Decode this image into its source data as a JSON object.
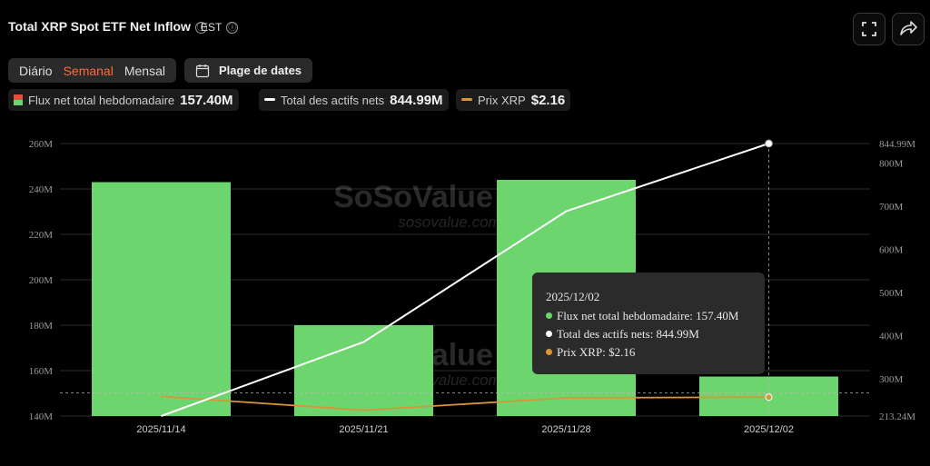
{
  "header": {
    "title": "Total XRP Spot ETF Net Inflow",
    "timezone": "EST",
    "info_icon": "ⓘ"
  },
  "periods": [
    {
      "label": "Diário",
      "active": false
    },
    {
      "label": "Semanal",
      "active": true
    },
    {
      "label": "Mensal",
      "active": false
    }
  ],
  "date_range_label": "Plage de dates",
  "legend": [
    {
      "label": "Flux net total hebdomadaire",
      "value": "157.40M"
    },
    {
      "label": "Total des actifs nets",
      "value": "844.99M"
    },
    {
      "label": "Prix XRP",
      "value": "$2.16"
    }
  ],
  "watermark": {
    "brand": "SoSoValue",
    "url": "sosovalue.com"
  },
  "colors": {
    "bar": "#6dd56d",
    "line": "#ffffff",
    "price": "#d9953a",
    "accent": "#ff6a3d",
    "background": "#000000"
  },
  "tooltip": {
    "date": "2025/12/02",
    "rows": [
      {
        "text": "Flux net total hebdomadaire: 157.40M",
        "color": "#6dd56d"
      },
      {
        "text": "Total des actifs nets: 844.99M",
        "color": "#ffffff"
      },
      {
        "text": "Prix XRP: $2.16",
        "color": "#d9953a"
      }
    ]
  },
  "chart_data": {
    "type": "bar",
    "categories": [
      "2025/11/14",
      "2025/11/21",
      "2025/11/28",
      "2025/12/02"
    ],
    "series": [
      {
        "name": "Flux net total hebdomadaire",
        "type": "bar",
        "axis": "left",
        "values": [
          243,
          180,
          244,
          157.4
        ]
      },
      {
        "name": "Total des actifs nets",
        "type": "line",
        "axis": "right",
        "values": [
          213.24,
          385,
          688,
          844.99
        ]
      },
      {
        "name": "Prix XRP",
        "type": "line",
        "axis": "right",
        "values": [
          2.17,
          1.98,
          2.15,
          2.16
        ]
      }
    ],
    "left_axis": {
      "ticks": [
        "140M",
        "160M",
        "180M",
        "200M",
        "220M",
        "240M",
        "260M"
      ],
      "ylim": [
        140,
        260
      ]
    },
    "right_axis": {
      "ticks": [
        "213.24M",
        "300M",
        "400M",
        "500M",
        "600M",
        "700M",
        "800M",
        "844.99M"
      ],
      "ylim": [
        213.24,
        844.99
      ]
    },
    "grid": true,
    "highlight_category": "2025/12/02"
  }
}
